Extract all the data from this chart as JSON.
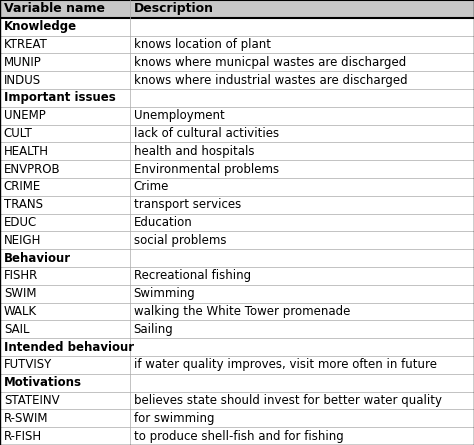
{
  "col1_header": "Variable name",
  "col2_header": "Description",
  "rows": [
    {
      "type": "section",
      "col1": "Knowledge",
      "col2": ""
    },
    {
      "type": "data",
      "col1": "KTREAT",
      "col2": "knows location of plant"
    },
    {
      "type": "data",
      "col1": "MUNIP",
      "col2": "knows where municpal wastes are discharged"
    },
    {
      "type": "data",
      "col1": "INDUS",
      "col2": "knows where industrial wastes are discharged"
    },
    {
      "type": "section",
      "col1": "Important issues",
      "col2": ""
    },
    {
      "type": "data",
      "col1": "UNEMP",
      "col2": "Unemployment"
    },
    {
      "type": "data",
      "col1": "CULT",
      "col2": "lack of cultural activities"
    },
    {
      "type": "data",
      "col1": "HEALTH",
      "col2": "health and hospitals"
    },
    {
      "type": "data",
      "col1": "ENVPROB",
      "col2": "Environmental problems"
    },
    {
      "type": "data",
      "col1": "CRIME",
      "col2": "Crime"
    },
    {
      "type": "data",
      "col1": "TRANS",
      "col2": "transport services"
    },
    {
      "type": "data",
      "col1": "EDUC",
      "col2": "Education"
    },
    {
      "type": "data",
      "col1": "NEIGH",
      "col2": "social problems"
    },
    {
      "type": "section",
      "col1": "Behaviour",
      "col2": ""
    },
    {
      "type": "data",
      "col1": "FISHR",
      "col2": "Recreational fishing"
    },
    {
      "type": "data",
      "col1": "SWIM",
      "col2": "Swimming"
    },
    {
      "type": "data",
      "col1": "WALK",
      "col2": "walking the White Tower promenade"
    },
    {
      "type": "data",
      "col1": "SAIL",
      "col2": "Sailing"
    },
    {
      "type": "section",
      "col1": "Intended behaviour",
      "col2": ""
    },
    {
      "type": "data",
      "col1": "FUTVISY",
      "col2": "if water quality improves, visit more often in future"
    },
    {
      "type": "section",
      "col1": "Motivations",
      "col2": ""
    },
    {
      "type": "data",
      "col1": "STATEINV",
      "col2": "believes state should invest for better water quality"
    },
    {
      "type": "data",
      "col1": "R-SWIM",
      "col2": "for swimming"
    },
    {
      "type": "data",
      "col1": "R-FISH",
      "col2": "to produce shell-fish and for fishing"
    }
  ],
  "bg_color": "#ffffff",
  "header_bg": "#c8c8c8",
  "line_color": "#aaaaaa",
  "col_split": 0.274,
  "font_size": 8.5,
  "header_font_size": 9.0
}
